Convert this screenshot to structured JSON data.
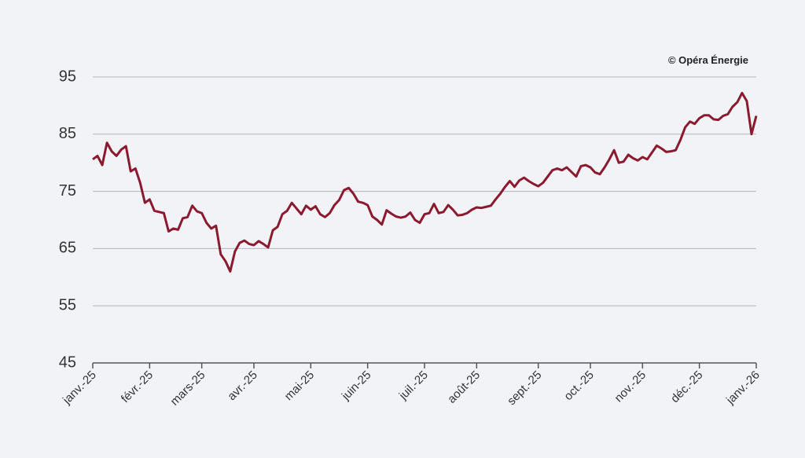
{
  "chart_data": {
    "type": "line",
    "annotation": "© Opéra Énergie",
    "categories": [
      "janv.-25",
      null,
      null,
      null,
      null,
      null,
      null,
      null,
      null,
      null,
      null,
      null,
      "févr.-25",
      null,
      null,
      null,
      null,
      null,
      null,
      null,
      null,
      null,
      null,
      "mars-25",
      null,
      null,
      null,
      null,
      null,
      null,
      null,
      null,
      null,
      null,
      "avr.-25",
      null,
      null,
      null,
      null,
      null,
      null,
      null,
      null,
      null,
      null,
      null,
      "mai-25",
      null,
      null,
      null,
      null,
      null,
      null,
      null,
      null,
      null,
      null,
      null,
      "juin-25",
      null,
      null,
      null,
      null,
      null,
      null,
      null,
      null,
      null,
      null,
      null,
      "juil.-25",
      null,
      null,
      null,
      null,
      null,
      null,
      null,
      null,
      null,
      null,
      "août-25",
      null,
      null,
      null,
      null,
      null,
      null,
      null,
      null,
      null,
      null,
      null,
      null,
      "sept.-25",
      null,
      null,
      null,
      null,
      null,
      null,
      null,
      null,
      null,
      null,
      "oct.-25",
      null,
      null,
      null,
      null,
      null,
      null,
      null,
      null,
      null,
      null,
      "nov.-25",
      null,
      null,
      null,
      null,
      null,
      null,
      null,
      null,
      null,
      null,
      null,
      "déc.-25",
      null,
      null,
      null,
      null,
      null,
      null,
      null,
      null,
      null,
      null,
      null,
      "janv.-26"
    ],
    "values": [
      80.6,
      81.2,
      79.6,
      83.5,
      82,
      81.2,
      82.3,
      82.9,
      78.5,
      79,
      76.5,
      73,
      73.6,
      71.6,
      71.4,
      71.2,
      68,
      68.5,
      68.3,
      70.3,
      70.5,
      72.5,
      71.5,
      71.2,
      69.5,
      68.5,
      69,
      64,
      62.8,
      61,
      64.5,
      66,
      66.4,
      65.8,
      65.6,
      66.3,
      65.8,
      65.2,
      68.2,
      68.8,
      71,
      71.6,
      73,
      72,
      71,
      72.5,
      71.8,
      72.4,
      71,
      70.5,
      71.2,
      72.6,
      73.5,
      75.2,
      75.6,
      74.6,
      73.2,
      73,
      72.6,
      70.6,
      70,
      69.2,
      71.7,
      71.1,
      70.6,
      70.4,
      70.6,
      71.3,
      70,
      69.5,
      71,
      71.2,
      72.8,
      71.2,
      71.4,
      72.6,
      71.8,
      70.8,
      70.9,
      71.2,
      71.8,
      72.2,
      72.1,
      72.3,
      72.5,
      73.6,
      74.6,
      75.8,
      76.8,
      75.8,
      76.9,
      77.4,
      76.8,
      76.3,
      75.9,
      76.5,
      77.6,
      78.7,
      79,
      78.7,
      79.2,
      78.4,
      77.6,
      79.4,
      79.6,
      79.2,
      78.3,
      78,
      79.2,
      80.6,
      82.2,
      80,
      80.2,
      81.4,
      80.8,
      80.4,
      81,
      80.6,
      81.8,
      83,
      82.5,
      81.9,
      82,
      82.2,
      84,
      86.2,
      87.2,
      86.8,
      87.8,
      88.3,
      88.3,
      87.6,
      87.5,
      88.2,
      88.5,
      89.8,
      90.6,
      92.2,
      90.8,
      85,
      88.2
    ],
    "color": "#8b1a2e",
    "ylim": [
      45,
      95
    ],
    "yticks": [
      45,
      55,
      65,
      75,
      85,
      95
    ],
    "grid": true
  }
}
